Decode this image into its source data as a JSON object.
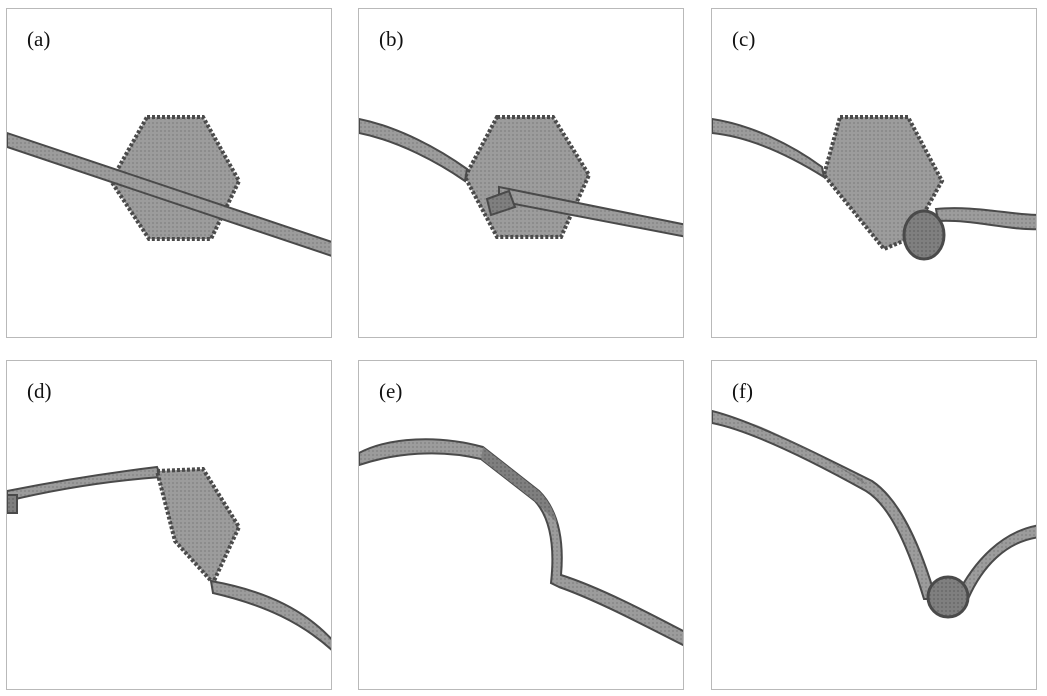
{
  "panels": [
    {
      "label": "(a)"
    },
    {
      "label": "(b)"
    },
    {
      "label": "(c)"
    },
    {
      "label": "(d)"
    },
    {
      "label": "(e)"
    },
    {
      "label": "(f)"
    }
  ],
  "colors": {
    "fill": "#9a9a9a",
    "fill_dark": "#7d7d7d",
    "edge": "#4a4a4a",
    "border": "#b9b9b9"
  }
}
